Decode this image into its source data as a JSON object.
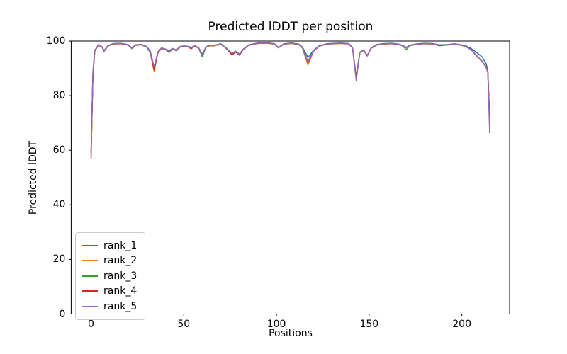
{
  "chart_data": {
    "type": "line",
    "title": "Predicted lDDT per position",
    "xlabel": "Positions",
    "ylabel": "Predicted lDDT",
    "xlim": [
      -10.75,
      225.75
    ],
    "ylim": [
      0,
      100
    ],
    "x_ticks": [
      0,
      50,
      100,
      150,
      200
    ],
    "y_ticks": [
      0,
      20,
      40,
      60,
      80,
      100
    ],
    "grid": false,
    "legend_position": "lower left",
    "positions": [
      0,
      1,
      2,
      4,
      6,
      7,
      9,
      12,
      16,
      20,
      22,
      24,
      27,
      30,
      32,
      34,
      36,
      38,
      40,
      42,
      44,
      46,
      48,
      50,
      52,
      54,
      56,
      58,
      60,
      62,
      64,
      66,
      70,
      73,
      76,
      78,
      80,
      82,
      85,
      90,
      95,
      99,
      101,
      104,
      108,
      112,
      114,
      117,
      120,
      123,
      127,
      131,
      135,
      139,
      141,
      143,
      145,
      147,
      149,
      151,
      154,
      158,
      162,
      166,
      168,
      170,
      172,
      176,
      180,
      184,
      188,
      192,
      196,
      199,
      202,
      205,
      208,
      211,
      213,
      214,
      215
    ],
    "series": [
      {
        "name": "rank_1",
        "color": "#1f77b4",
        "values": [
          60.0,
          88.5,
          96.6,
          98.7,
          97.9,
          96.5,
          98.3,
          99.1,
          99.2,
          98.7,
          97.5,
          98.6,
          98.8,
          98.0,
          96.2,
          90.0,
          96.0,
          97.5,
          97.1,
          96.5,
          97.3,
          96.7,
          98.0,
          98.2,
          98.1,
          97.7,
          98.3,
          97.6,
          95.2,
          97.9,
          98.5,
          98.4,
          99.0,
          97.4,
          95.6,
          96.3,
          95.3,
          97.0,
          98.6,
          99.3,
          99.4,
          99.0,
          97.7,
          99.0,
          99.3,
          98.9,
          97.8,
          94.0,
          96.6,
          98.3,
          99.0,
          99.2,
          99.3,
          99.1,
          97.7,
          86.9,
          95.9,
          96.8,
          94.7,
          97.5,
          98.7,
          99.1,
          99.2,
          98.9,
          98.4,
          97.7,
          98.5,
          99.0,
          99.2,
          99.1,
          98.6,
          98.7,
          99.0,
          98.7,
          98.3,
          97.3,
          95.8,
          94.2,
          91.8,
          89.5,
          71.0
        ]
      },
      {
        "name": "rank_2",
        "color": "#ff7f0e",
        "values": [
          59.5,
          87.5,
          96.4,
          98.5,
          97.7,
          96.2,
          98.1,
          98.9,
          99.0,
          98.5,
          97.2,
          98.4,
          98.6,
          97.8,
          95.5,
          88.8,
          95.6,
          97.3,
          96.9,
          96.2,
          97.1,
          96.5,
          97.8,
          98.0,
          97.9,
          97.5,
          98.1,
          97.4,
          94.8,
          97.7,
          98.3,
          98.2,
          98.8,
          97.2,
          95.3,
          96.1,
          95.0,
          96.8,
          98.4,
          99.1,
          99.2,
          98.8,
          97.5,
          98.8,
          99.1,
          98.7,
          97.4,
          91.2,
          96.2,
          98.1,
          98.8,
          99.0,
          99.1,
          98.9,
          97.5,
          86.6,
          95.7,
          96.6,
          94.5,
          97.3,
          98.5,
          98.9,
          99.0,
          98.7,
          98.2,
          97.5,
          98.3,
          98.8,
          99.0,
          98.9,
          98.4,
          98.5,
          98.8,
          98.5,
          98.0,
          96.8,
          94.4,
          92.4,
          90.4,
          88.4,
          69.0
        ]
      },
      {
        "name": "rank_3",
        "color": "#2ca02c",
        "values": [
          59.0,
          87.8,
          96.5,
          98.6,
          97.8,
          96.3,
          98.2,
          99.0,
          99.1,
          98.6,
          97.3,
          98.5,
          98.7,
          97.9,
          95.7,
          89.7,
          95.8,
          97.4,
          97.0,
          95.8,
          97.2,
          96.4,
          97.9,
          98.1,
          98.0,
          97.6,
          98.2,
          97.5,
          94.2,
          97.8,
          98.4,
          98.3,
          98.9,
          97.3,
          94.9,
          96.0,
          94.9,
          96.9,
          98.5,
          99.2,
          99.3,
          98.9,
          97.6,
          98.9,
          99.2,
          98.8,
          97.6,
          92.5,
          96.4,
          98.2,
          98.9,
          99.1,
          99.2,
          99.0,
          97.6,
          86.8,
          95.8,
          96.7,
          94.6,
          97.4,
          98.6,
          99.0,
          99.1,
          98.8,
          98.3,
          96.8,
          98.4,
          98.9,
          99.1,
          99.0,
          98.5,
          98.6,
          98.9,
          98.6,
          98.1,
          96.9,
          94.6,
          92.6,
          90.6,
          88.6,
          70.0
        ]
      },
      {
        "name": "rank_4",
        "color": "#d62728",
        "values": [
          57.0,
          87.2,
          96.3,
          98.6,
          97.8,
          96.3,
          98.2,
          99.0,
          99.1,
          98.6,
          97.3,
          98.5,
          98.7,
          97.9,
          95.8,
          89.4,
          95.7,
          97.4,
          97.0,
          96.3,
          97.2,
          96.6,
          97.9,
          98.1,
          98.0,
          97.2,
          98.2,
          97.5,
          94.9,
          97.8,
          98.4,
          98.3,
          98.9,
          97.3,
          94.9,
          96.1,
          94.8,
          96.9,
          98.5,
          99.2,
          99.3,
          98.9,
          97.6,
          98.9,
          99.2,
          98.8,
          97.6,
          92.0,
          96.4,
          98.2,
          98.9,
          99.1,
          99.2,
          99.0,
          97.6,
          86.5,
          95.8,
          96.7,
          94.6,
          97.4,
          98.6,
          99.0,
          99.1,
          98.8,
          98.3,
          97.6,
          98.4,
          98.9,
          99.1,
          99.0,
          98.3,
          98.6,
          98.9,
          98.6,
          98.1,
          96.9,
          94.6,
          92.6,
          90.6,
          88.6,
          72.0
        ]
      },
      {
        "name": "rank_5",
        "color": "#9467bd",
        "values": [
          58.0,
          87.6,
          96.5,
          98.6,
          97.8,
          96.3,
          98.2,
          99.0,
          99.1,
          98.6,
          97.3,
          98.5,
          98.7,
          97.9,
          95.9,
          90.5,
          95.9,
          97.4,
          97.0,
          96.3,
          97.2,
          96.6,
          97.9,
          98.1,
          98.0,
          97.6,
          98.2,
          97.5,
          95.0,
          97.8,
          98.4,
          98.3,
          98.9,
          97.3,
          95.5,
          96.2,
          95.2,
          96.9,
          98.5,
          99.2,
          99.3,
          98.9,
          97.6,
          98.9,
          99.2,
          98.8,
          97.6,
          92.3,
          96.4,
          98.2,
          98.9,
          99.1,
          99.2,
          99.0,
          97.6,
          85.6,
          95.8,
          96.7,
          94.6,
          97.4,
          98.6,
          99.0,
          99.1,
          98.8,
          98.3,
          97.6,
          98.4,
          98.9,
          99.1,
          99.0,
          98.5,
          98.6,
          98.9,
          98.6,
          98.1,
          96.9,
          94.6,
          92.6,
          90.6,
          88.6,
          66.3
        ]
      }
    ]
  },
  "legend": {
    "items": [
      {
        "label": "rank_1",
        "color": "#1f77b4"
      },
      {
        "label": "rank_2",
        "color": "#ff7f0e"
      },
      {
        "label": "rank_3",
        "color": "#2ca02c"
      },
      {
        "label": "rank_4",
        "color": "#d62728"
      },
      {
        "label": "rank_5",
        "color": "#9467bd"
      }
    ]
  },
  "colors": {
    "axis": "#000000",
    "background": "#ffffff",
    "legend_border": "#cccccc"
  }
}
